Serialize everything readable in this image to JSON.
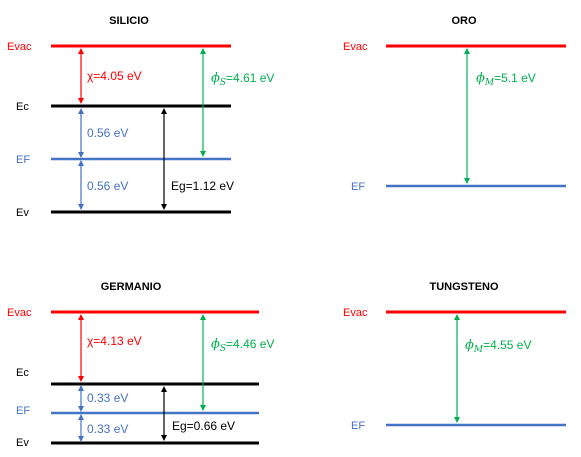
{
  "colors": {
    "evac": "#ff0000",
    "conduction": "#000000",
    "fermi": "#4472c4",
    "chi_arrow": "#ff0000",
    "gap_arrow": "#000000",
    "phi_arrow": "#00b050",
    "half_gap_arrow": "#4472c4"
  },
  "panels": {
    "silicio": {
      "title": "SILICIO",
      "evac_label": "Evac",
      "ec_label": "Ec",
      "ef_label": "EF",
      "ev_label": "Ev",
      "chi_label": "χ=4.05 eV",
      "upper_half_label": "0.56 eV",
      "lower_half_label": "0.56 eV",
      "eg_label": "Eg=1.12 eV",
      "phi_symbol": "ϕ",
      "phi_sub": "S",
      "phi_value": "=4.61 eV"
    },
    "oro": {
      "title": "ORO",
      "evac_label": "Evac",
      "ef_label": "EF",
      "phi_symbol": "ϕ",
      "phi_sub": "M",
      "phi_value": "=5.1 eV"
    },
    "germanio": {
      "title": "GERMANIO",
      "evac_label": "Evac",
      "ec_label": "Ec",
      "ef_label": "EF",
      "ev_label": "Ev",
      "chi_label": "χ=4.13 eV",
      "upper_half_label": "0.33 eV",
      "lower_half_label": "0.33 eV",
      "eg_label": "Eg=0.66 eV",
      "phi_symbol": "ϕ",
      "phi_sub": "S",
      "phi_value": "=4.46 eV"
    },
    "tungsteno": {
      "title": "TUNGSTENO",
      "evac_label": "Evac",
      "ef_label": "EF",
      "phi_symbol": "ϕ",
      "phi_sub": "M",
      "phi_value": "=4.55 eV"
    }
  }
}
